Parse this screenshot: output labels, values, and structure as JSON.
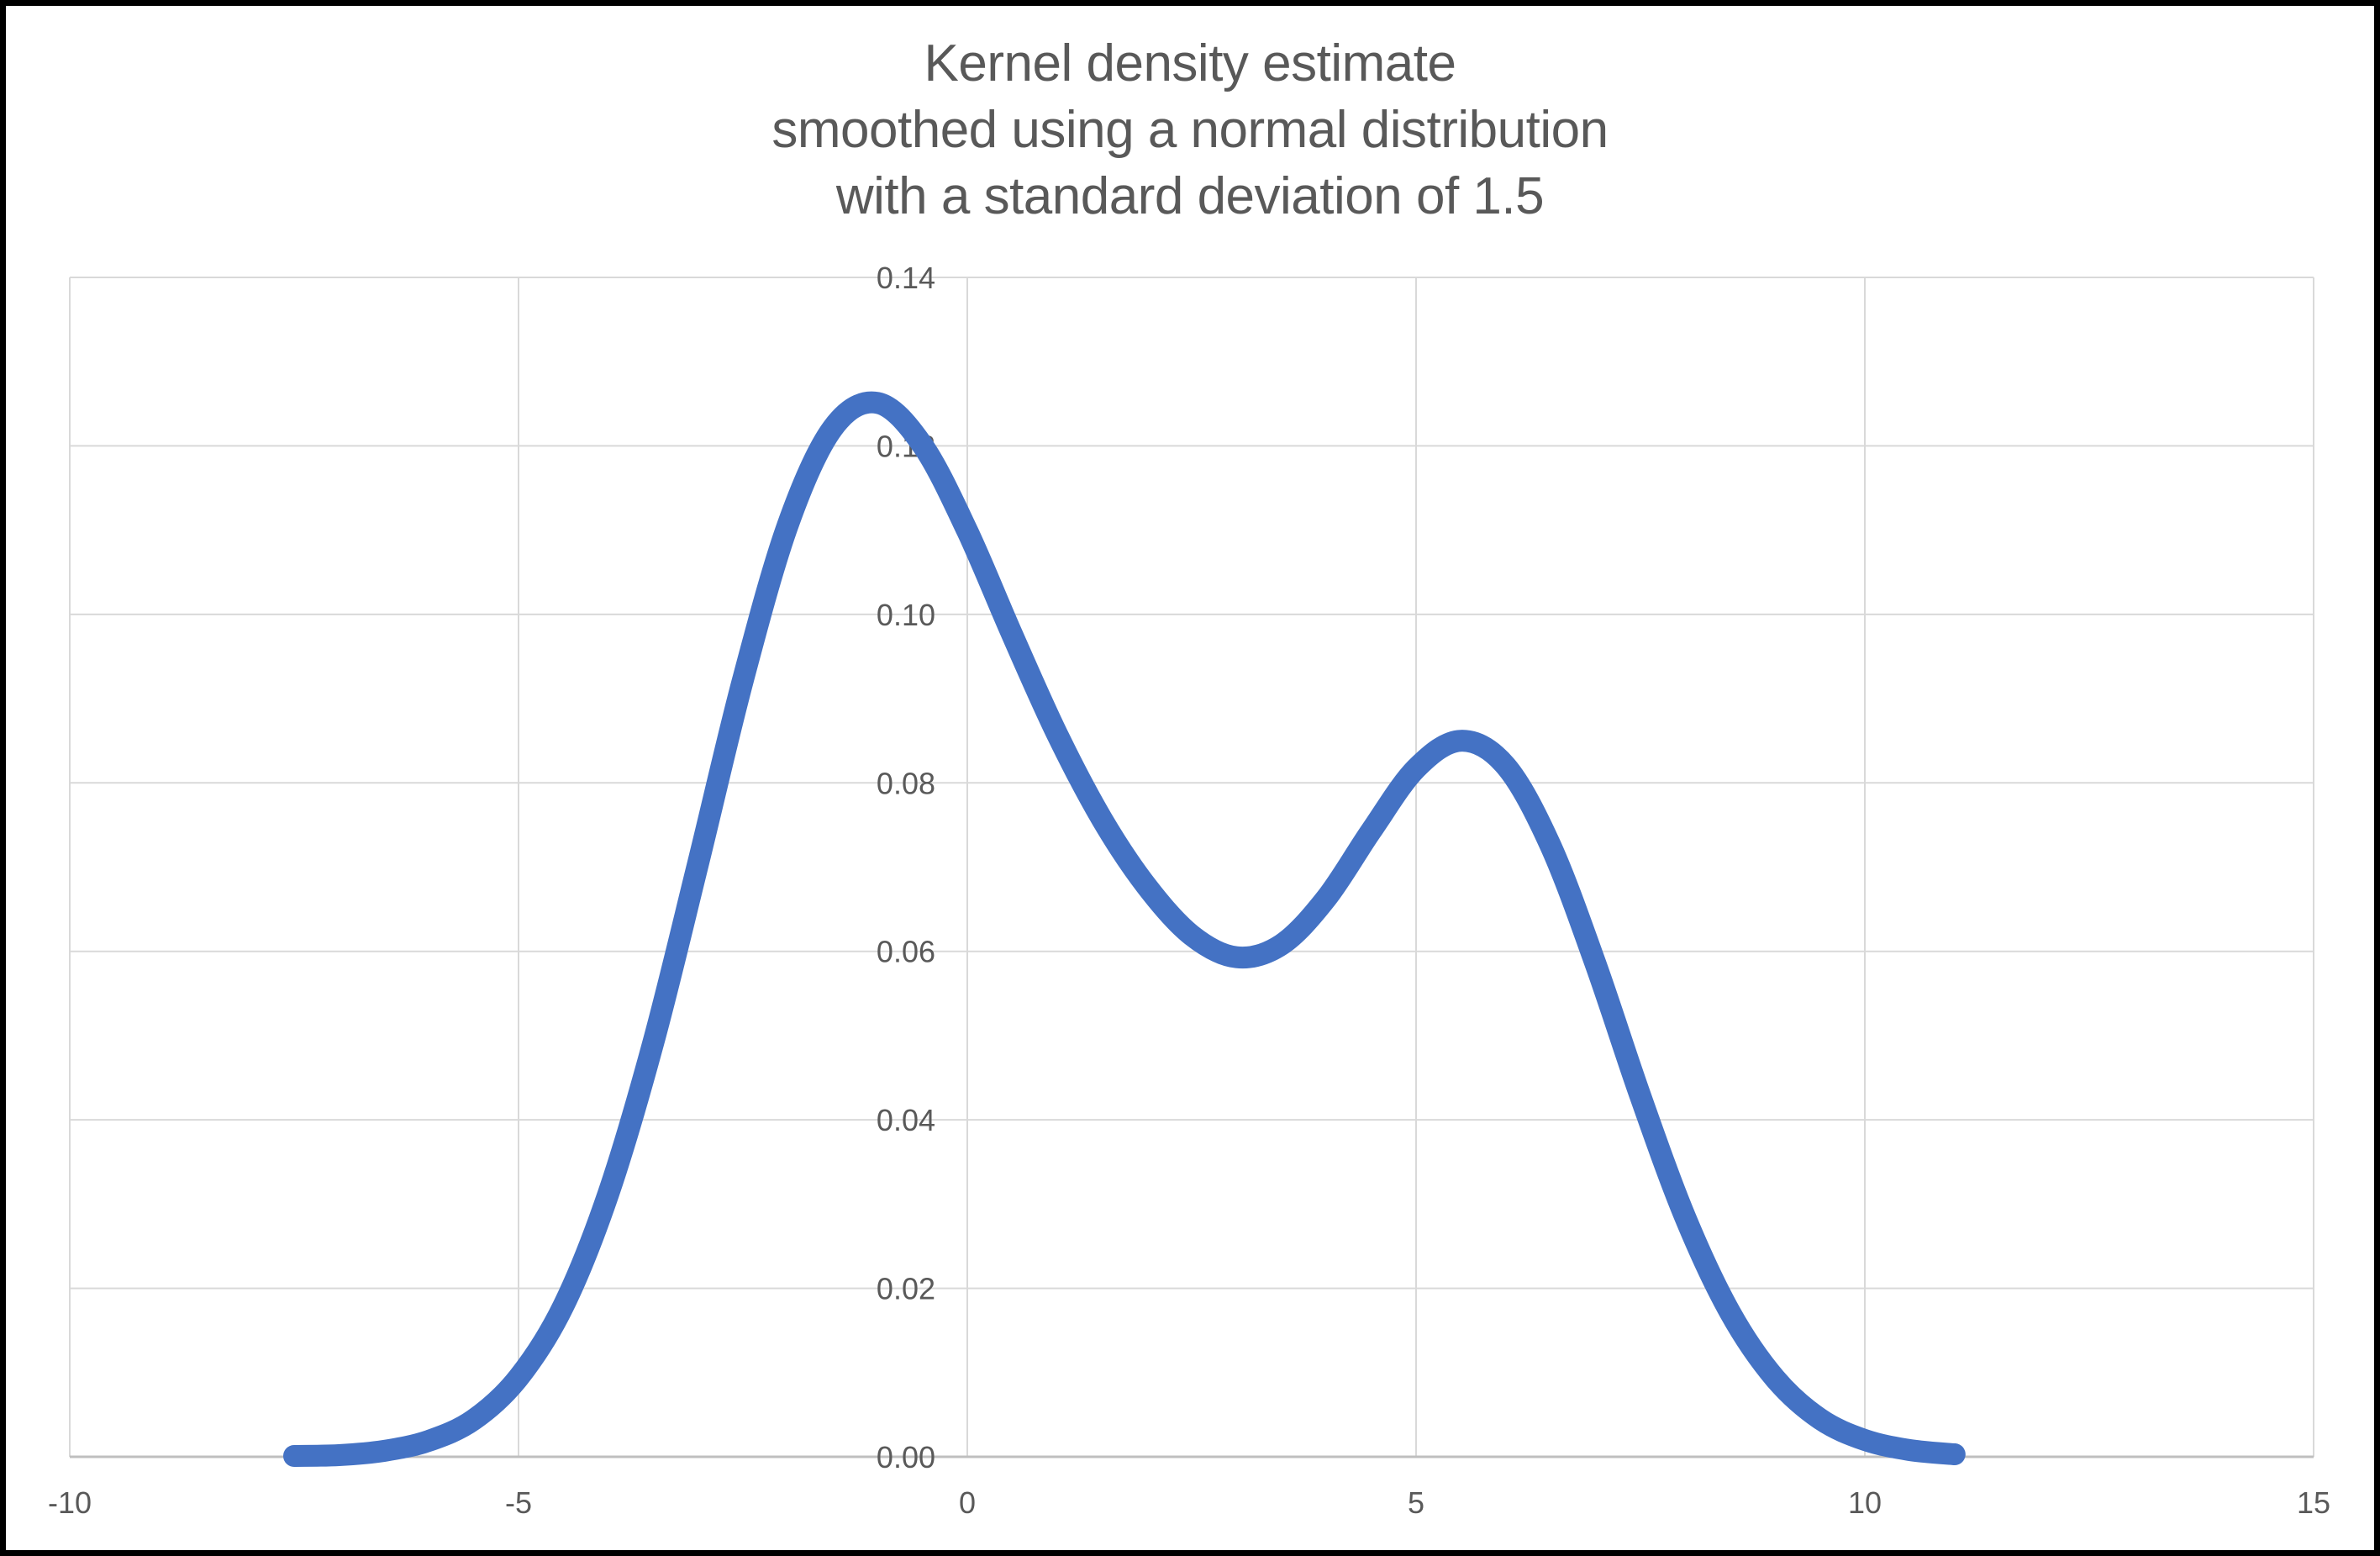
{
  "title": {
    "lines": [
      "Kernel density estimate",
      "smoothed using a normal distribution",
      "with a standard deviation of 1.5"
    ],
    "color": "#595959"
  },
  "style": {
    "background_color": "#ffffff",
    "frame_color": "#000000",
    "gridline_color": "#d9d9d9",
    "axis_line_color": "#bfbfbf",
    "tick_label_color": "#595959",
    "line_color": "#4472c4",
    "line_width": 26
  },
  "chart_data": {
    "type": "line",
    "title": "Kernel density estimate smoothed using a normal distribution with a standard deviation of 1.5",
    "xlabel": "",
    "ylabel": "",
    "xlim": [
      -10,
      15
    ],
    "ylim": [
      0,
      0.14
    ],
    "x_ticks": [
      -10,
      -5,
      0,
      5,
      10,
      15
    ],
    "x_tick_labels": [
      "-10",
      "-5",
      "0",
      "5",
      "10",
      "15"
    ],
    "y_ticks": [
      0.0,
      0.02,
      0.04,
      0.06,
      0.08,
      0.1,
      0.12,
      0.14
    ],
    "y_tick_labels": [
      "0.00",
      "0.02",
      "0.04",
      "0.06",
      "0.08",
      "0.10",
      "0.12",
      "0.14"
    ],
    "grid": true,
    "legend": false,
    "series": [
      {
        "name": "kernel-density-estimate",
        "color": "#4472c4",
        "x": [
          -7.5,
          -7.0,
          -6.5,
          -6.0,
          -5.5,
          -5.0,
          -4.5,
          -4.0,
          -3.5,
          -3.0,
          -2.5,
          -2.0,
          -1.5,
          -1.0,
          -0.5,
          0.0,
          0.5,
          1.0,
          1.5,
          2.0,
          2.5,
          3.0,
          3.5,
          4.0,
          4.5,
          5.0,
          5.5,
          6.0,
          6.5,
          7.0,
          7.5,
          8.0,
          8.5,
          9.0,
          9.5,
          10.0,
          10.5,
          11.0
        ],
        "y": [
          0.0001,
          0.0002,
          0.0007,
          0.0019,
          0.0044,
          0.0094,
          0.0179,
          0.0312,
          0.0491,
          0.0704,
          0.0922,
          0.1106,
          0.1221,
          0.1251,
          0.1201,
          0.1099,
          0.0976,
          0.0858,
          0.0757,
          0.0677,
          0.0619,
          0.0593,
          0.0608,
          0.0663,
          0.0743,
          0.0817,
          0.085,
          0.082,
          0.0725,
          0.0585,
          0.0428,
          0.0284,
          0.0171,
          0.0093,
          0.0045,
          0.002,
          0.0008,
          0.0003
        ]
      }
    ]
  }
}
